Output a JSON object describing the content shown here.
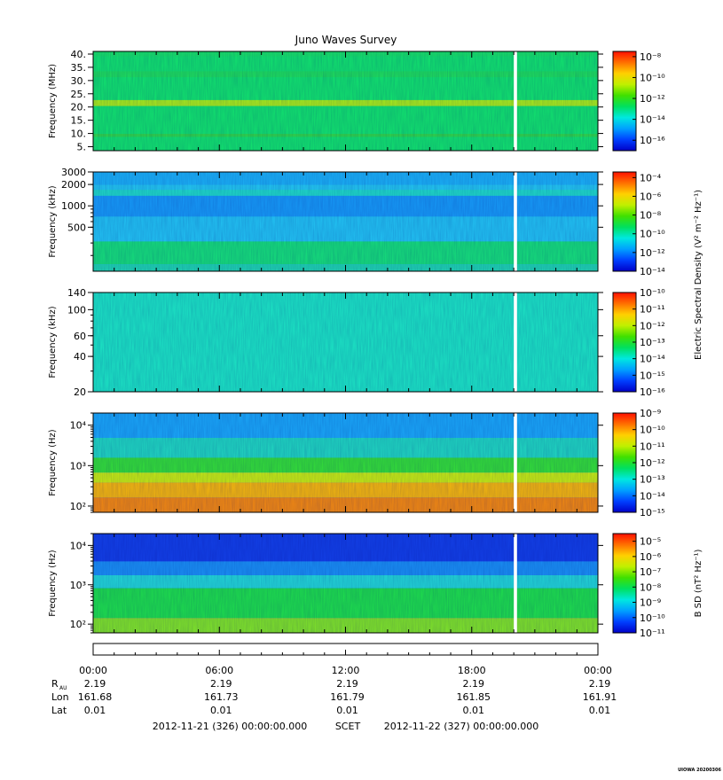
{
  "figure": {
    "title": "Juno Waves Survey",
    "credit": "UIOWA 20200306"
  },
  "chart_data": [
    {
      "type": "heatmap",
      "ylabel": "Frequency (MHz)",
      "yscale": "linear",
      "ylim": [
        3.5,
        41
      ],
      "yticks": [
        "40.",
        "35.",
        "30.",
        "25.",
        "20.",
        "15.",
        "10.",
        "5."
      ],
      "ytick_values": [
        40,
        35,
        30,
        25,
        20,
        15,
        10,
        5
      ],
      "base_color": "#12e56d",
      "bands": [
        {
          "from": 0.0,
          "to": 0.05,
          "color": "#18e366"
        },
        {
          "from": 0.2,
          "to": 0.26,
          "color": "#1ee05c"
        },
        {
          "from": 0.49,
          "to": 0.55,
          "color": "#a8ef1a"
        },
        {
          "from": 0.83,
          "to": 0.86,
          "color": "#2fd94b"
        }
      ],
      "cbar_ticks": [
        -8,
        -10,
        -12,
        -14,
        -16
      ],
      "cbar_range": [
        -17,
        -7.5
      ],
      "cbar_label": ""
    },
    {
      "type": "heatmap",
      "ylabel": "Frequency (kHz)",
      "yscale": "log",
      "ylim": [
        120,
        3000
      ],
      "yticks": [
        "3000",
        "2000",
        "1000",
        "500"
      ],
      "ytick_values": [
        3000,
        2000,
        1000,
        500
      ],
      "base_color": "#23c8f0",
      "bands": [
        {
          "from": 0.0,
          "to": 0.13,
          "color": "#1bb2f6"
        },
        {
          "from": 0.18,
          "to": 0.24,
          "color": "#1fdcc8"
        },
        {
          "from": 0.24,
          "to": 0.45,
          "color": "#179bf7"
        },
        {
          "from": 0.45,
          "to": 0.7,
          "color": "#22c4f3"
        },
        {
          "from": 0.7,
          "to": 0.93,
          "color": "#16e07a"
        },
        {
          "from": 0.93,
          "to": 1.0,
          "color": "#1fd6b0"
        }
      ],
      "cbar_ticks": [
        -4,
        -6,
        -8,
        -10,
        -12,
        -14
      ],
      "cbar_range": [
        -14,
        -3.4
      ],
      "cbar_label": "Electric Spectral Density (V² m⁻² Hz⁻¹)"
    },
    {
      "type": "heatmap",
      "ylabel": "Frequency (kHz)",
      "yscale": "log",
      "ylim": [
        20,
        140
      ],
      "yticks": [
        "140",
        "100",
        "60",
        "40",
        "20"
      ],
      "ytick_values": [
        140,
        100,
        60,
        40,
        20
      ],
      "base_color": "#1ce6c4",
      "bands": [],
      "cbar_ticks": [
        -10,
        -11,
        -12,
        -13,
        -14,
        -15,
        -16
      ],
      "cbar_range": [
        -16,
        -10
      ],
      "cbar_label": ""
    },
    {
      "type": "heatmap",
      "ylabel": "Frequency (Hz)",
      "yscale": "log",
      "ylim": [
        70,
        20000
      ],
      "yticks": [
        "10⁴",
        "10³",
        "10²"
      ],
      "ytick_values": [
        10000,
        1000,
        100
      ],
      "base_color": "#22b8f5",
      "bands": [
        {
          "from": 0.0,
          "to": 0.25,
          "color": "#1aa8f8"
        },
        {
          "from": 0.25,
          "to": 0.45,
          "color": "#20d8c0"
        },
        {
          "from": 0.45,
          "to": 0.6,
          "color": "#34e038"
        },
        {
          "from": 0.6,
          "to": 0.7,
          "color": "#c8ef10"
        },
        {
          "from": 0.7,
          "to": 0.85,
          "color": "#f6b80c"
        },
        {
          "from": 0.85,
          "to": 1.0,
          "color": "#f48a10"
        }
      ],
      "cbar_ticks": [
        -9,
        -10,
        -11,
        -12,
        -13,
        -14,
        -15
      ],
      "cbar_range": [
        -15,
        -9
      ],
      "cbar_label": ""
    },
    {
      "type": "heatmap",
      "ylabel": "Frequency (Hz)",
      "yscale": "log",
      "ylim": [
        60,
        20000
      ],
      "yticks": [
        "10⁴",
        "10³",
        "10²"
      ],
      "ytick_values": [
        10000,
        1000,
        100
      ],
      "base_color": "#1a58f0",
      "bands": [
        {
          "from": 0.0,
          "to": 0.28,
          "color": "#1340e6"
        },
        {
          "from": 0.28,
          "to": 0.42,
          "color": "#1a90f4"
        },
        {
          "from": 0.42,
          "to": 0.55,
          "color": "#22d8d6"
        },
        {
          "from": 0.55,
          "to": 0.85,
          "color": "#1ee04c"
        },
        {
          "from": 0.85,
          "to": 1.0,
          "color": "#80e628"
        }
      ],
      "cbar_ticks": [
        -5,
        -6,
        -7,
        -8,
        -9,
        -10,
        -11
      ],
      "cbar_range": [
        -11,
        -4.5
      ],
      "cbar_label": "B SD (nT² Hz⁻¹)"
    }
  ],
  "time_axis": {
    "tick_labels": [
      "00:00",
      "06:00",
      "12:00",
      "18:00",
      "00:00"
    ],
    "tick_hours": [
      0,
      6,
      12,
      18,
      24
    ],
    "data_gap_hours": [
      20.0,
      20.15
    ],
    "rows": [
      {
        "label": "R",
        "label_sub": "AU",
        "values": [
          "2.19",
          "2.19",
          "2.19",
          "2.19",
          "2.19"
        ]
      },
      {
        "label": "Lon",
        "label_sub": "",
        "values": [
          "161.68",
          "161.73",
          "161.79",
          "161.85",
          "161.91"
        ]
      },
      {
        "label": "Lat",
        "label_sub": "",
        "values": [
          "0.01",
          "0.01",
          "0.01",
          "0.01",
          "0.01"
        ]
      }
    ],
    "start_label": "2012-11-21 (326) 00:00:00.000",
    "scet_label": "SCET",
    "end_label": "2012-11-22 (327) 00:00:00.000"
  },
  "colors": {
    "colormap": [
      "#0000c8",
      "#0040ff",
      "#00a0ff",
      "#00e8e0",
      "#00e060",
      "#40e000",
      "#c0f000",
      "#ffd000",
      "#ff7000",
      "#ff1000"
    ]
  }
}
